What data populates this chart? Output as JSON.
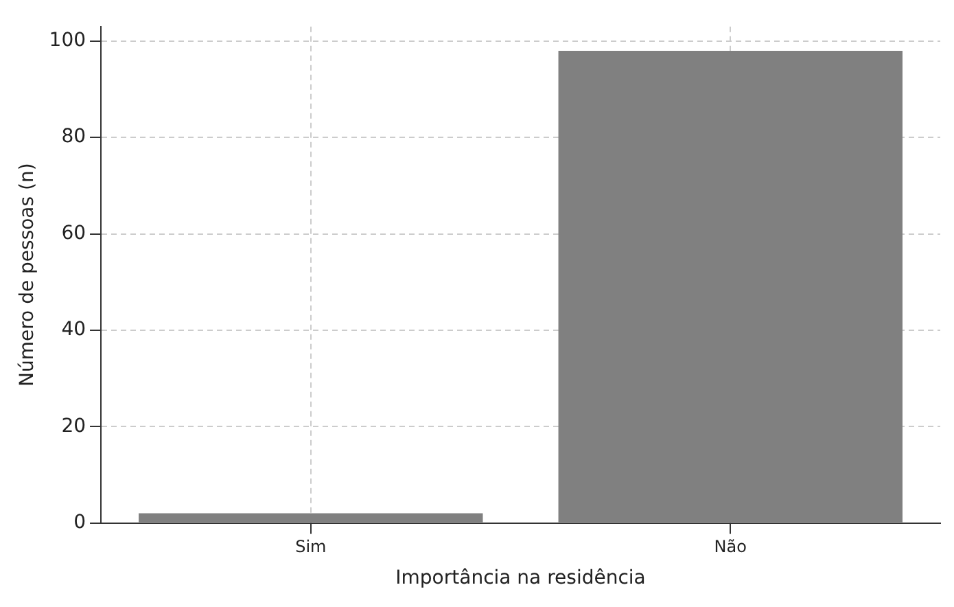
{
  "chart_data": {
    "type": "bar",
    "xlabel": "Importância na residência",
    "ylabel": "Número de pessoas (n)",
    "categories": [
      "Sim",
      "Não"
    ],
    "values": [
      2,
      98
    ],
    "color": "#808080",
    "ylim": [
      0,
      103
    ],
    "yticks": [
      0,
      20,
      40,
      60,
      80,
      100
    ],
    "grid": true,
    "line_style": "dashed"
  }
}
